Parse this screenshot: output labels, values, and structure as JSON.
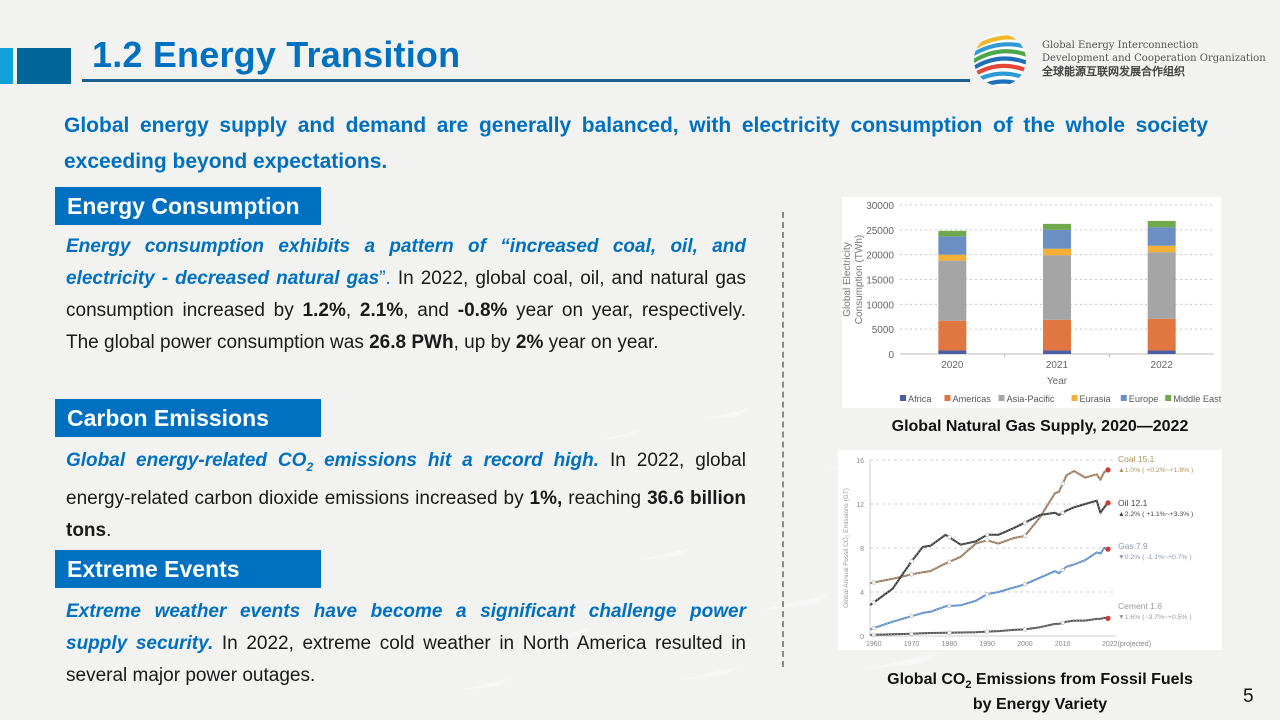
{
  "header": {
    "title": "1.2 Energy Transition",
    "org_name_line1": "Global Energy Interconnection",
    "org_name_line2": "Development and Cooperation Organization",
    "org_name_cn": "全球能源互联网发展合作组织"
  },
  "headline": "Global energy supply and demand are generally balanced, with electricity consumption  of the whole society exceeding beyond expectations.",
  "sections": {
    "consumption": {
      "title": "Energy Consumption",
      "lead": "Energy consumption exhibits a pattern of “increased coal, oil, and electricity - decreased natural gas",
      "lead_end": "”. ",
      "t1": "In 2022, global coal, oil, and natural gas consumption increased by ",
      "b1": "1.2%",
      "t2": ", ",
      "b2": "2.1%",
      "t3": ", and ",
      "b3": "-0.8%",
      "t4": " year on year, respectively. The global power consumption was ",
      "b4": "26.8 PWh",
      "t5": ", up by ",
      "b5": "2%",
      "t6": " year on year."
    },
    "emissions": {
      "title": "Carbon Emissions",
      "lead_a": "Global energy-related CO",
      "lead_sub": "2",
      "lead_b": " emissions hit a record high.",
      "t1": " In 2022, global energy-related carbon dioxide emissions increased by ",
      "b1": "1%,",
      "t2": " reaching ",
      "b2": "36.6 billion tons",
      "t3": "."
    },
    "extreme": {
      "title": "Extreme Events",
      "lead": "Extreme weather events have become a significant challenge power supply security.",
      "t1": " In 2022, extreme cold weather in North America resulted in several major power outages."
    }
  },
  "captions": {
    "chart1": "Global Natural Gas Supply, 2020—2022",
    "chart2_a": "Global CO",
    "chart2_sub": "2",
    "chart2_b": " Emissions from Fossil Fuels",
    "chart2_c": "by Energy Variety"
  },
  "page_number": "5",
  "chart_data": [
    {
      "type": "bar",
      "stacked": true,
      "title": "",
      "xlabel": "Year",
      "ylabel": "Global Electricity Consumption (TWh)",
      "ylim": [
        0,
        30000
      ],
      "yticks": [
        "0",
        "5000",
        "10000",
        "15000",
        "20000",
        "25000",
        "30000"
      ],
      "categories": [
        "2020",
        "2021",
        "2022"
      ],
      "legend_position": "bottom",
      "grid": true,
      "series": [
        {
          "name": "Africa",
          "color": "#4a5ea8",
          "values": [
            700,
            700,
            700
          ]
        },
        {
          "name": "Americas",
          "color": "#e07640",
          "values": [
            6000,
            6200,
            6400
          ]
        },
        {
          "name": "Asia-Pacific",
          "color": "#a5a5a5",
          "values": [
            12100,
            13000,
            13400
          ]
        },
        {
          "name": "Eurasia",
          "color": "#f4b036",
          "values": [
            1200,
            1300,
            1300
          ]
        },
        {
          "name": "Europe",
          "color": "#6b8fc3",
          "values": [
            3700,
            3800,
            3700
          ]
        },
        {
          "name": "Middle East",
          "color": "#70a84c",
          "values": [
            1100,
            1200,
            1300
          ]
        }
      ]
    },
    {
      "type": "line",
      "title": "",
      "xlabel": "",
      "ylabel": "Global Annual Fossil CO₂ Emissions (GT)",
      "ylim": [
        0,
        16
      ],
      "xlim": [
        1959,
        2022
      ],
      "yticks": [
        "0",
        "4",
        "8",
        "12",
        "16"
      ],
      "xticks": [
        "1960",
        "1970",
        "1980",
        "1990",
        "2000",
        "2010",
        "2022(projected)"
      ],
      "grid": true,
      "x": [
        1959,
        1965,
        1970,
        1973,
        1975,
        1979,
        1983,
        1987,
        1990,
        1993,
        1997,
        2000,
        2004,
        2008,
        2009,
        2011,
        2013,
        2016,
        2019,
        2020,
        2021,
        2022
      ],
      "series": [
        {
          "name": "Coal",
          "label": "Coal  15.1",
          "change": "▲1.0% ( +0.2%~+1.8% )",
          "color": "#9a7a5a",
          "label_color": "#b0925a",
          "values": [
            4.8,
            5.2,
            5.6,
            5.8,
            5.9,
            6.6,
            7.2,
            8.4,
            8.7,
            8.4,
            8.9,
            9.1,
            10.8,
            13.0,
            13.1,
            14.6,
            15.0,
            14.4,
            14.7,
            14.2,
            14.9,
            15.1
          ]
        },
        {
          "name": "Oil",
          "label": "Oil  12.1",
          "change": "▲2.2% ( +1.1%~+3.3% )",
          "color": "#3a3a3a",
          "label_color": "#444444",
          "values": [
            2.8,
            4.3,
            6.8,
            8.1,
            8.2,
            9.2,
            8.3,
            8.6,
            9.2,
            9.2,
            9.8,
            10.3,
            11.0,
            11.2,
            11.0,
            11.4,
            11.7,
            12.0,
            12.3,
            11.2,
            11.7,
            12.1
          ]
        },
        {
          "name": "Gas",
          "label": "Gas  7.9",
          "change": "▼0.2% ( -1.1%~+0.7% )",
          "color": "#5b8ec6",
          "label_color": "#8a95b8",
          "values": [
            0.6,
            1.3,
            1.8,
            2.1,
            2.2,
            2.7,
            2.8,
            3.2,
            3.8,
            4.0,
            4.4,
            4.7,
            5.3,
            5.9,
            5.7,
            6.3,
            6.5,
            6.9,
            7.6,
            7.5,
            8.0,
            7.9
          ]
        },
        {
          "name": "Cement",
          "label": "Cement  1.6",
          "change": "▼1.6% ( -3.7%~+0.5% )",
          "color": "#555555",
          "label_color": "#999999",
          "values": [
            0.1,
            0.15,
            0.2,
            0.25,
            0.27,
            0.3,
            0.32,
            0.34,
            0.4,
            0.45,
            0.55,
            0.6,
            0.8,
            1.1,
            1.1,
            1.3,
            1.4,
            1.4,
            1.55,
            1.55,
            1.65,
            1.6
          ]
        }
      ]
    }
  ]
}
